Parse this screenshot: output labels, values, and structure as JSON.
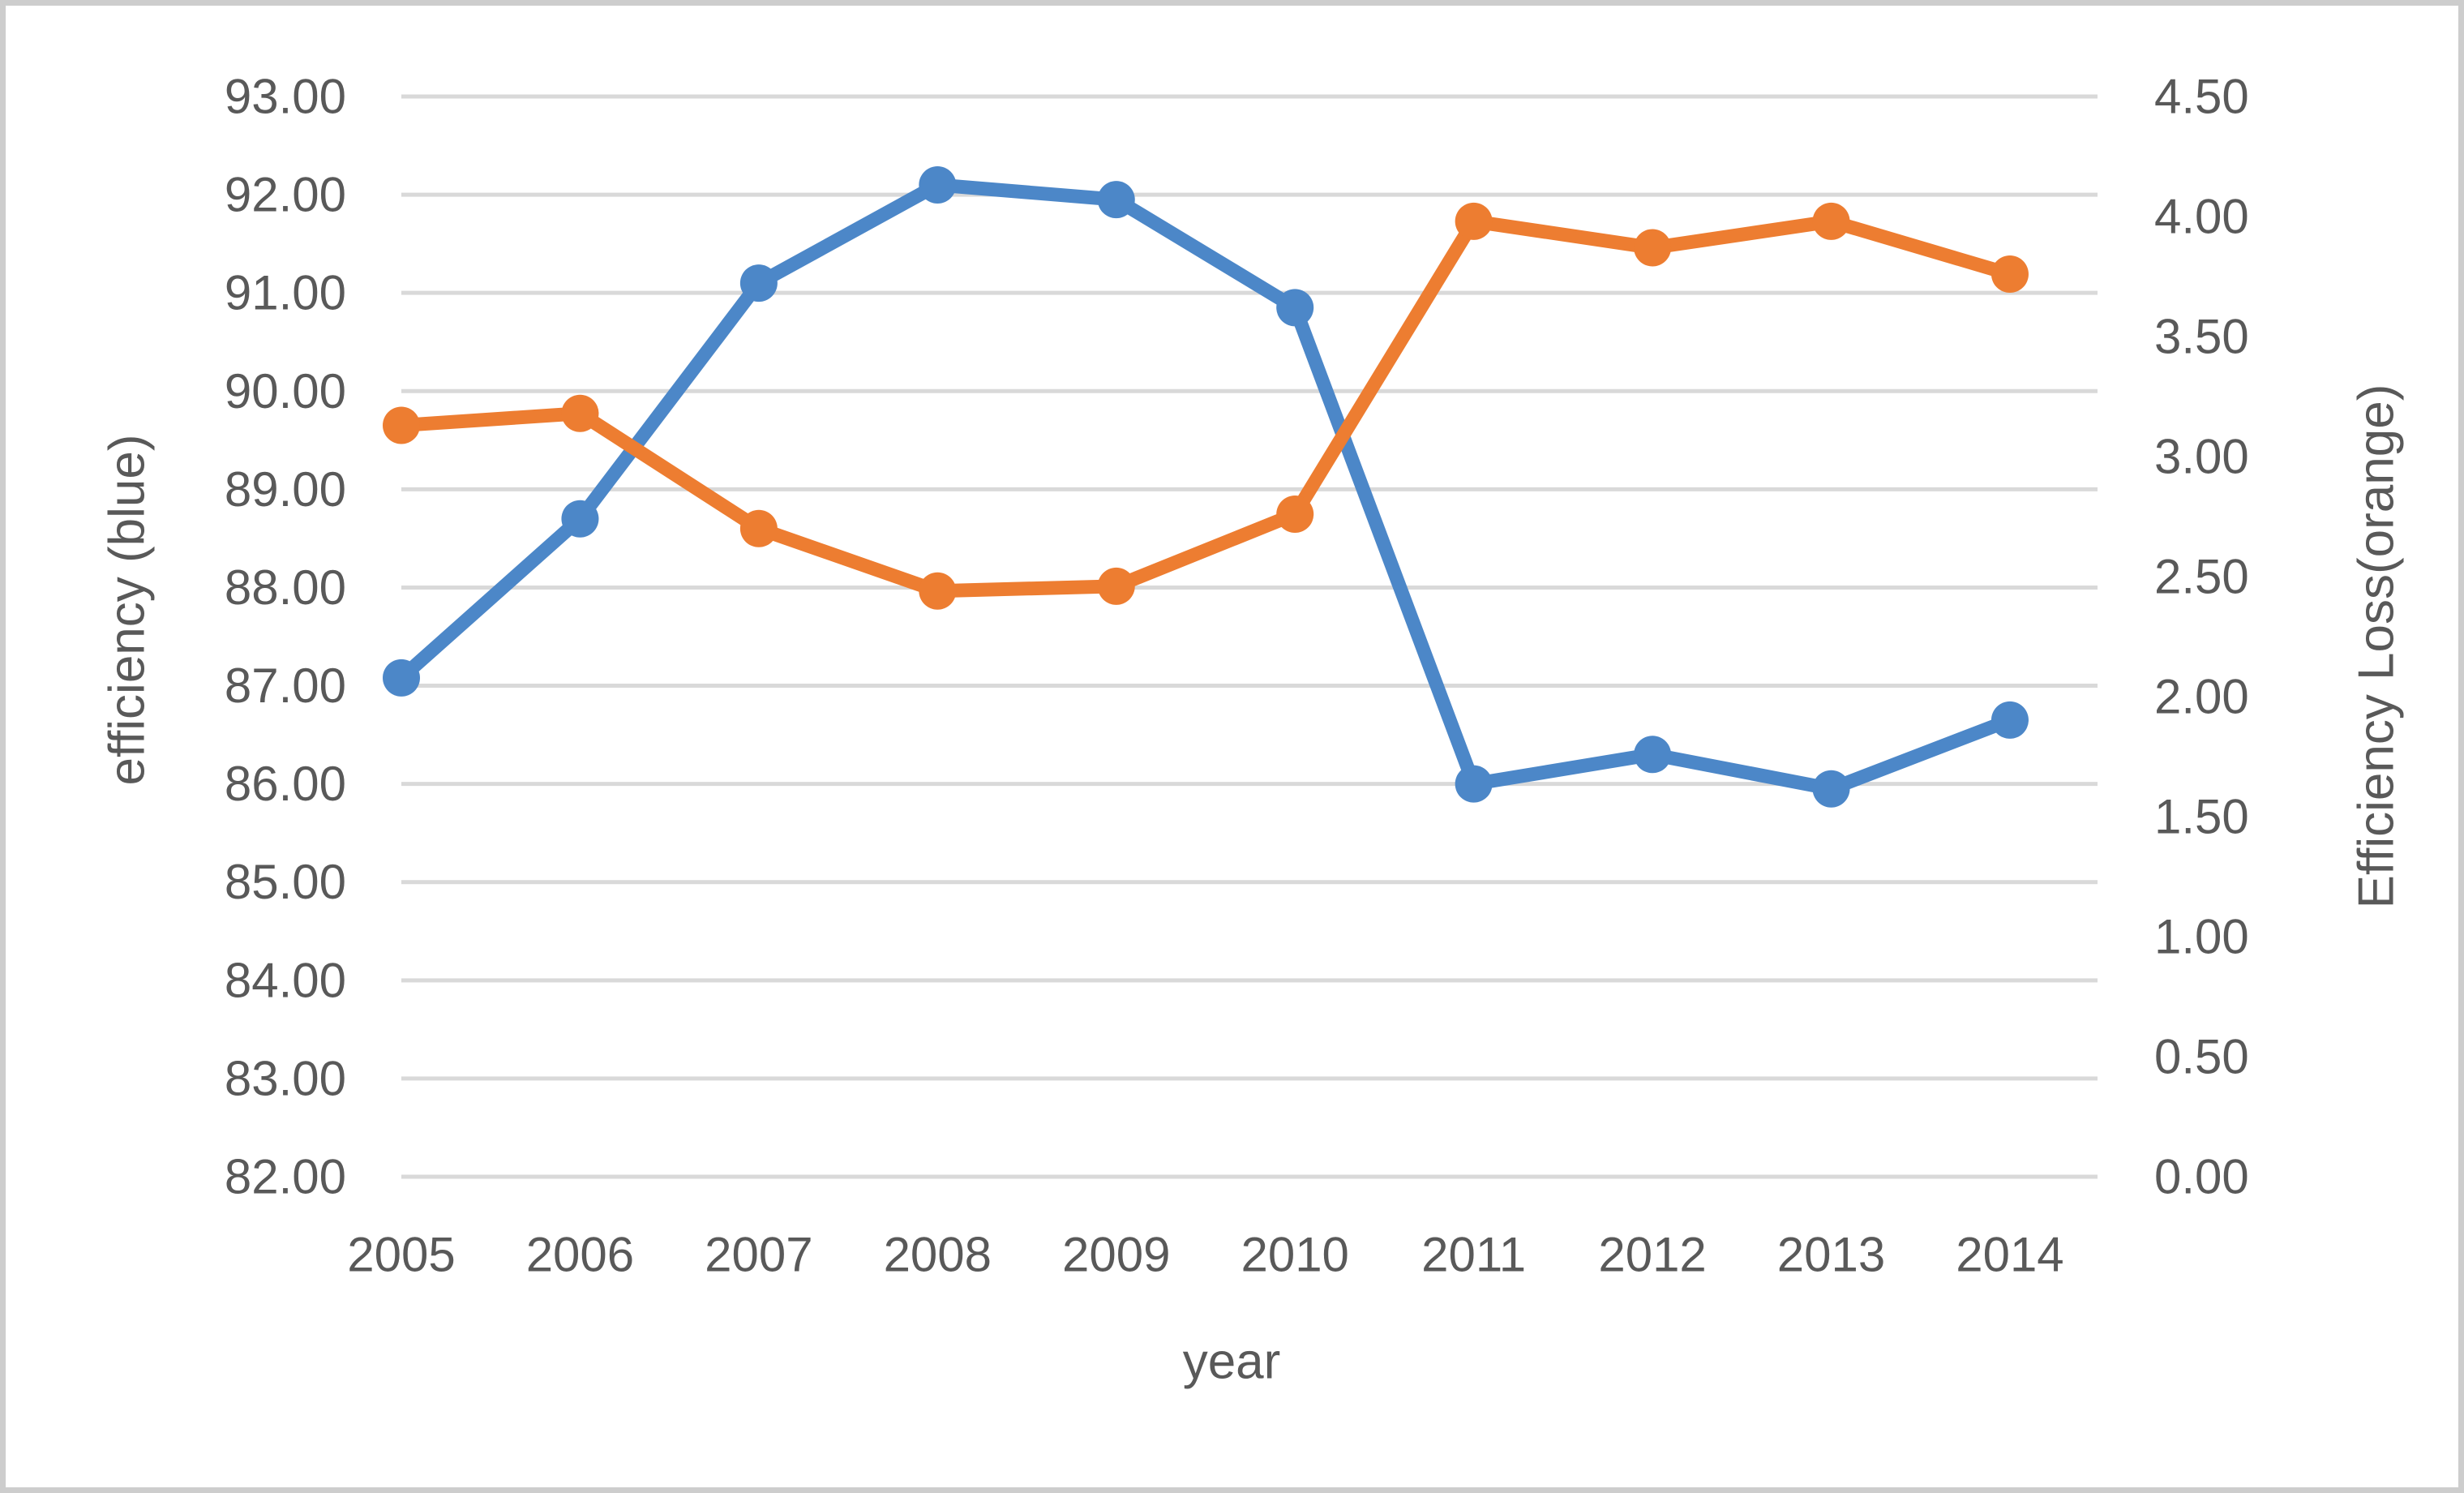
{
  "chart_data": {
    "type": "line",
    "title": "",
    "legend": "none",
    "grid": "horizontal",
    "gridline_color": "#D9D9D9",
    "text_color": "#595959",
    "background_color": "#FFFFFF",
    "border_color": "#CDCDCD",
    "categories": [
      "2005",
      "2006",
      "2007",
      "2008",
      "2009",
      "2010",
      "2011",
      "2012",
      "2013",
      "2014"
    ],
    "x_axis": {
      "label": "year"
    },
    "left_axis": {
      "label": "efficiency (blue)",
      "min": 82,
      "max": 93,
      "step": 1,
      "decimals": 2
    },
    "right_axis": {
      "label": "Efficiency Loss(orange)",
      "min": 0,
      "max": 4.5,
      "step": 0.5,
      "decimals": 2
    },
    "series": [
      {
        "name": "efficiency",
        "axis": "left",
        "color": "#4C87C8",
        "values": [
          87.08,
          88.7,
          91.1,
          92.1,
          91.95,
          90.85,
          86.0,
          86.3,
          85.95,
          86.65
        ]
      },
      {
        "name": "efficiency-loss",
        "axis": "right",
        "color": "#ED7D31",
        "values": [
          3.13,
          3.18,
          2.7,
          2.44,
          2.46,
          2.76,
          3.98,
          3.87,
          3.98,
          3.76
        ]
      }
    ]
  }
}
